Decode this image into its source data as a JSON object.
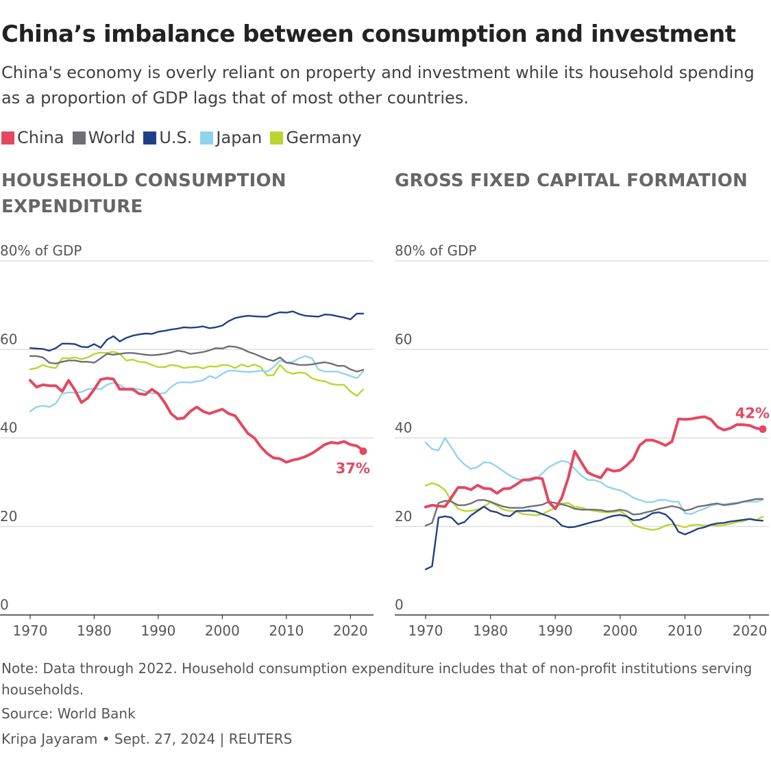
{
  "header": {
    "title": "China’s imbalance between consumption and investment",
    "subtitle": "China's economy is overly reliant on property and investment while its household spending as a proportion of GDP lags that of most other countries."
  },
  "legend": [
    {
      "label": "China",
      "color": "#e5475f"
    },
    {
      "label": "World",
      "color": "#6e6e75"
    },
    {
      "label": "U.S.",
      "color": "#1f3f87"
    },
    {
      "label": "Japan",
      "color": "#8fd3ef"
    },
    {
      "label": "Germany",
      "color": "#bcd42f"
    }
  ],
  "panels": {
    "left_title": "HOUSEHOLD CONSUMPTION EXPENDITURE",
    "right_title": "GROSS FIXED CAPITAL FORMATION"
  },
  "chart_data": [
    {
      "type": "line",
      "title": "HOUSEHOLD CONSUMPTION EXPENDITURE",
      "ylim": [
        0,
        80
      ],
      "xlim": [
        1970,
        2022
      ],
      "ytick_labels": [
        "80% of GDP",
        "60",
        "40",
        "20",
        "0"
      ],
      "yticks": [
        80,
        60,
        40,
        20,
        0
      ],
      "xticks": [
        1970,
        1980,
        1990,
        2000,
        2010,
        2020
      ],
      "xtick_labels": [
        "1970",
        "1980",
        "1990",
        "2000",
        "2010",
        "2020"
      ],
      "grid": true,
      "annotation": {
        "series": "China",
        "text": "37%",
        "x": 2022,
        "y": 37
      },
      "series": [
        {
          "name": "Germany",
          "color": "#bcd42f",
          "x_start": 1970,
          "values": [
            55.5,
            55.8,
            56.5,
            56,
            55.8,
            58,
            58,
            58.2,
            57.8,
            58.2,
            59,
            59.3,
            59.2,
            59.5,
            59,
            57.5,
            57.7,
            57.2,
            57.1,
            56.5,
            56,
            56,
            56.5,
            56.3,
            55.8,
            56,
            56.1,
            55.7,
            56.2,
            56.1,
            56.5,
            56.4,
            55.8,
            56.6,
            56.1,
            56.6,
            56,
            54.1,
            54.2,
            56.5,
            55,
            54.5,
            54.8,
            54.6,
            53.5,
            53,
            52.8,
            52.2,
            52,
            52,
            50.5,
            49.5,
            51
          ]
        },
        {
          "name": "Japan",
          "color": "#8fd3ef",
          "x_start": 1970,
          "values": [
            46,
            47,
            47.3,
            47,
            47.8,
            50,
            50.3,
            50.2,
            50.4,
            51,
            51.2,
            51,
            52,
            52.5,
            52,
            51,
            51.2,
            51,
            50.5,
            50.1,
            50,
            50.1,
            51.5,
            52.5,
            52.6,
            52.5,
            52.8,
            53,
            54,
            53.5,
            54.5,
            55.2,
            55.2,
            55,
            54.9,
            55,
            55.2,
            55,
            56,
            57.5,
            57,
            57.2,
            58,
            58.5,
            58,
            55.5,
            55,
            55,
            55,
            54.5,
            54,
            53.5,
            55
          ]
        },
        {
          "name": "World",
          "color": "#6e6e75",
          "x_start": 1970,
          "values": [
            58.5,
            58.5,
            58.2,
            57,
            56.8,
            57.2,
            57.5,
            57.5,
            57.2,
            57.2,
            57,
            58,
            59,
            58.8,
            59,
            59.2,
            59.2,
            59,
            58.8,
            58.7,
            58.8,
            59,
            59.3,
            59.7,
            59.5,
            59,
            59.2,
            59.4,
            59.8,
            60.3,
            60.2,
            60.7,
            60.6,
            60.2,
            59.5,
            59,
            58.4,
            57.8,
            57.4,
            58.2,
            57,
            56.8,
            56.5,
            56.5,
            56.6,
            56.9,
            57.1,
            56.8,
            56.3,
            56.3,
            55.5,
            55,
            55.4
          ]
        },
        {
          "name": "U.S.",
          "color": "#1f3f87",
          "x_start": 1970,
          "values": [
            60.3,
            60.2,
            60.1,
            59.7,
            60.3,
            61.3,
            61.3,
            61.2,
            60.6,
            60.5,
            61.2,
            60.4,
            62.2,
            63,
            61.8,
            62.6,
            63.1,
            63.4,
            63.6,
            63.5,
            64,
            64.2,
            64.5,
            64.7,
            65,
            64.9,
            65,
            65.2,
            64.8,
            65,
            65.4,
            66.4,
            67.1,
            67.4,
            67.6,
            67.5,
            67.4,
            67.4,
            68,
            68.4,
            68.3,
            68.6,
            68,
            67.6,
            67.5,
            67.4,
            67.9,
            67.8,
            67.5,
            67.2,
            66.8,
            68.1,
            68.1
          ]
        },
        {
          "name": "China",
          "color": "#e5475f",
          "x_start": 1970,
          "values": [
            53,
            51.5,
            52,
            51.8,
            51.8,
            50.5,
            53,
            50.8,
            48,
            49,
            51,
            53.2,
            53.5,
            53.3,
            51,
            51,
            51,
            50,
            49.8,
            51,
            50,
            48,
            45.5,
            44.3,
            44.5,
            46,
            47,
            46,
            45.5,
            46,
            46.5,
            45.5,
            45,
            43,
            41,
            40,
            38,
            36.5,
            35.5,
            35.3,
            34.5,
            35,
            35.3,
            35.8,
            36.5,
            37.5,
            38.5,
            39,
            38.8,
            39.2,
            38.5,
            38.2,
            37.2
          ]
        }
      ]
    },
    {
      "type": "line",
      "title": "GROSS FIXED CAPITAL FORMATION",
      "ylim": [
        0,
        80
      ],
      "xlim": [
        1970,
        2022
      ],
      "ytick_labels": [
        "80% of GDP",
        "60",
        "40",
        "20",
        "0"
      ],
      "yticks": [
        80,
        60,
        40,
        20,
        0
      ],
      "xticks": [
        1970,
        1980,
        1990,
        2000,
        2010,
        2020
      ],
      "xtick_labels": [
        "1970",
        "1980",
        "1990",
        "2000",
        "2010",
        "2020"
      ],
      "grid": true,
      "annotation": {
        "series": "China",
        "text": "42%",
        "x": 2022,
        "y": 42
      },
      "series": [
        {
          "name": "Japan",
          "color": "#8fd3ef",
          "x_start": 1970,
          "values": [
            39,
            37.5,
            37.2,
            40,
            37.8,
            35.5,
            34,
            33,
            33.4,
            34.5,
            34.4,
            33.5,
            32.5,
            31.5,
            30.8,
            30.5,
            30.2,
            30.7,
            32,
            33.4,
            34.2,
            34.8,
            34.5,
            33,
            31.5,
            30.5,
            30.5,
            30,
            29,
            28.5,
            28.2,
            27.5,
            26.5,
            26,
            25.5,
            25.5,
            26,
            26,
            25.6,
            25.6,
            23,
            22.8,
            23.5,
            24,
            24.7,
            25,
            25,
            25.2,
            25.4,
            25.6,
            25.6,
            25.6,
            26
          ]
        },
        {
          "name": "Germany",
          "color": "#bcd42f",
          "x_start": 1970,
          "values": [
            29.2,
            29.8,
            29.3,
            28.2,
            25.8,
            24,
            23.5,
            23.5,
            23.8,
            24.5,
            25.5,
            24.7,
            23.8,
            23.5,
            23.4,
            22.8,
            22.7,
            22.5,
            22.8,
            23.5,
            24.2,
            25.2,
            25.3,
            24.4,
            24.3,
            23.8,
            23.5,
            23.3,
            23.2,
            23.3,
            23.5,
            22.5,
            20.5,
            19.8,
            19.5,
            19.2,
            19.5,
            20.2,
            20.5,
            20.2,
            19.8,
            20.3,
            20.4,
            20.2,
            20.3,
            20.2,
            20.3,
            20.6,
            21,
            21.2,
            21.7,
            21.5,
            22.2
          ]
        },
        {
          "name": "World",
          "color": "#6e6e75",
          "x_start": 1970,
          "values": [
            20.2,
            20.8,
            25.3,
            25.8,
            25.6,
            24.8,
            24.8,
            25.2,
            25.9,
            26,
            25.6,
            25,
            24.5,
            24.2,
            24.2,
            24.2,
            24.5,
            24.7,
            24.9,
            25.6,
            25.3,
            25,
            24.6,
            24,
            23.8,
            23.8,
            23.8,
            23.7,
            23.4,
            23.5,
            23.8,
            23.5,
            22.7,
            22.8,
            23.2,
            23.5,
            24,
            24.3,
            24.6,
            24.3,
            23.6,
            23.9,
            24.5,
            24.7,
            25,
            25.2,
            24.8,
            25,
            25.2,
            25.6,
            25.9,
            26.2,
            26.2
          ]
        },
        {
          "name": "U.S.",
          "color": "#1f3f87",
          "x_start": 1970,
          "values": [
            10.3,
            11,
            22,
            22.3,
            22,
            20.5,
            21,
            22.5,
            23.5,
            24.5,
            23.5,
            23.2,
            22.5,
            22.3,
            23.5,
            23.5,
            23.6,
            23.4,
            22.8,
            22.3,
            21.6,
            20.2,
            19.8,
            19.9,
            20.3,
            20.7,
            21.1,
            21.4,
            22,
            22.4,
            22.6,
            22.3,
            21.4,
            21.5,
            22.1,
            23,
            23.2,
            22.7,
            21.3,
            18.8,
            18.2,
            18.8,
            19.5,
            19.8,
            20.4,
            20.7,
            20.8,
            21.1,
            21.3,
            21.5,
            21.7,
            21.4,
            21.3
          ]
        },
        {
          "name": "China",
          "color": "#e5475f",
          "x_start": 1970,
          "values": [
            24.4,
            24.8,
            24.6,
            24.5,
            26.6,
            28.8,
            28.8,
            28.3,
            29.3,
            28.6,
            28.5,
            27.5,
            28.5,
            28.6,
            29.5,
            30.5,
            30.6,
            31,
            30.8,
            25.5,
            24,
            26.5,
            31,
            37,
            34.5,
            32.2,
            31.5,
            31,
            33,
            32.5,
            32.7,
            33.8,
            35.2,
            38.3,
            39.5,
            39.5,
            39,
            38.3,
            39.2,
            44.3,
            44.2,
            44.3,
            44.6,
            44.8,
            44.2,
            42.5,
            41.8,
            42.2,
            43,
            43,
            42.8,
            42.2,
            42
          ]
        }
      ]
    }
  ],
  "footer": {
    "note": "Note: Data through 2022. Household consumption expenditure includes that of non-profit institutions serving households.",
    "source": "Source: World Bank",
    "credit": "Kripa Jayaram • Sept. 27, 2024 | REUTERS"
  }
}
